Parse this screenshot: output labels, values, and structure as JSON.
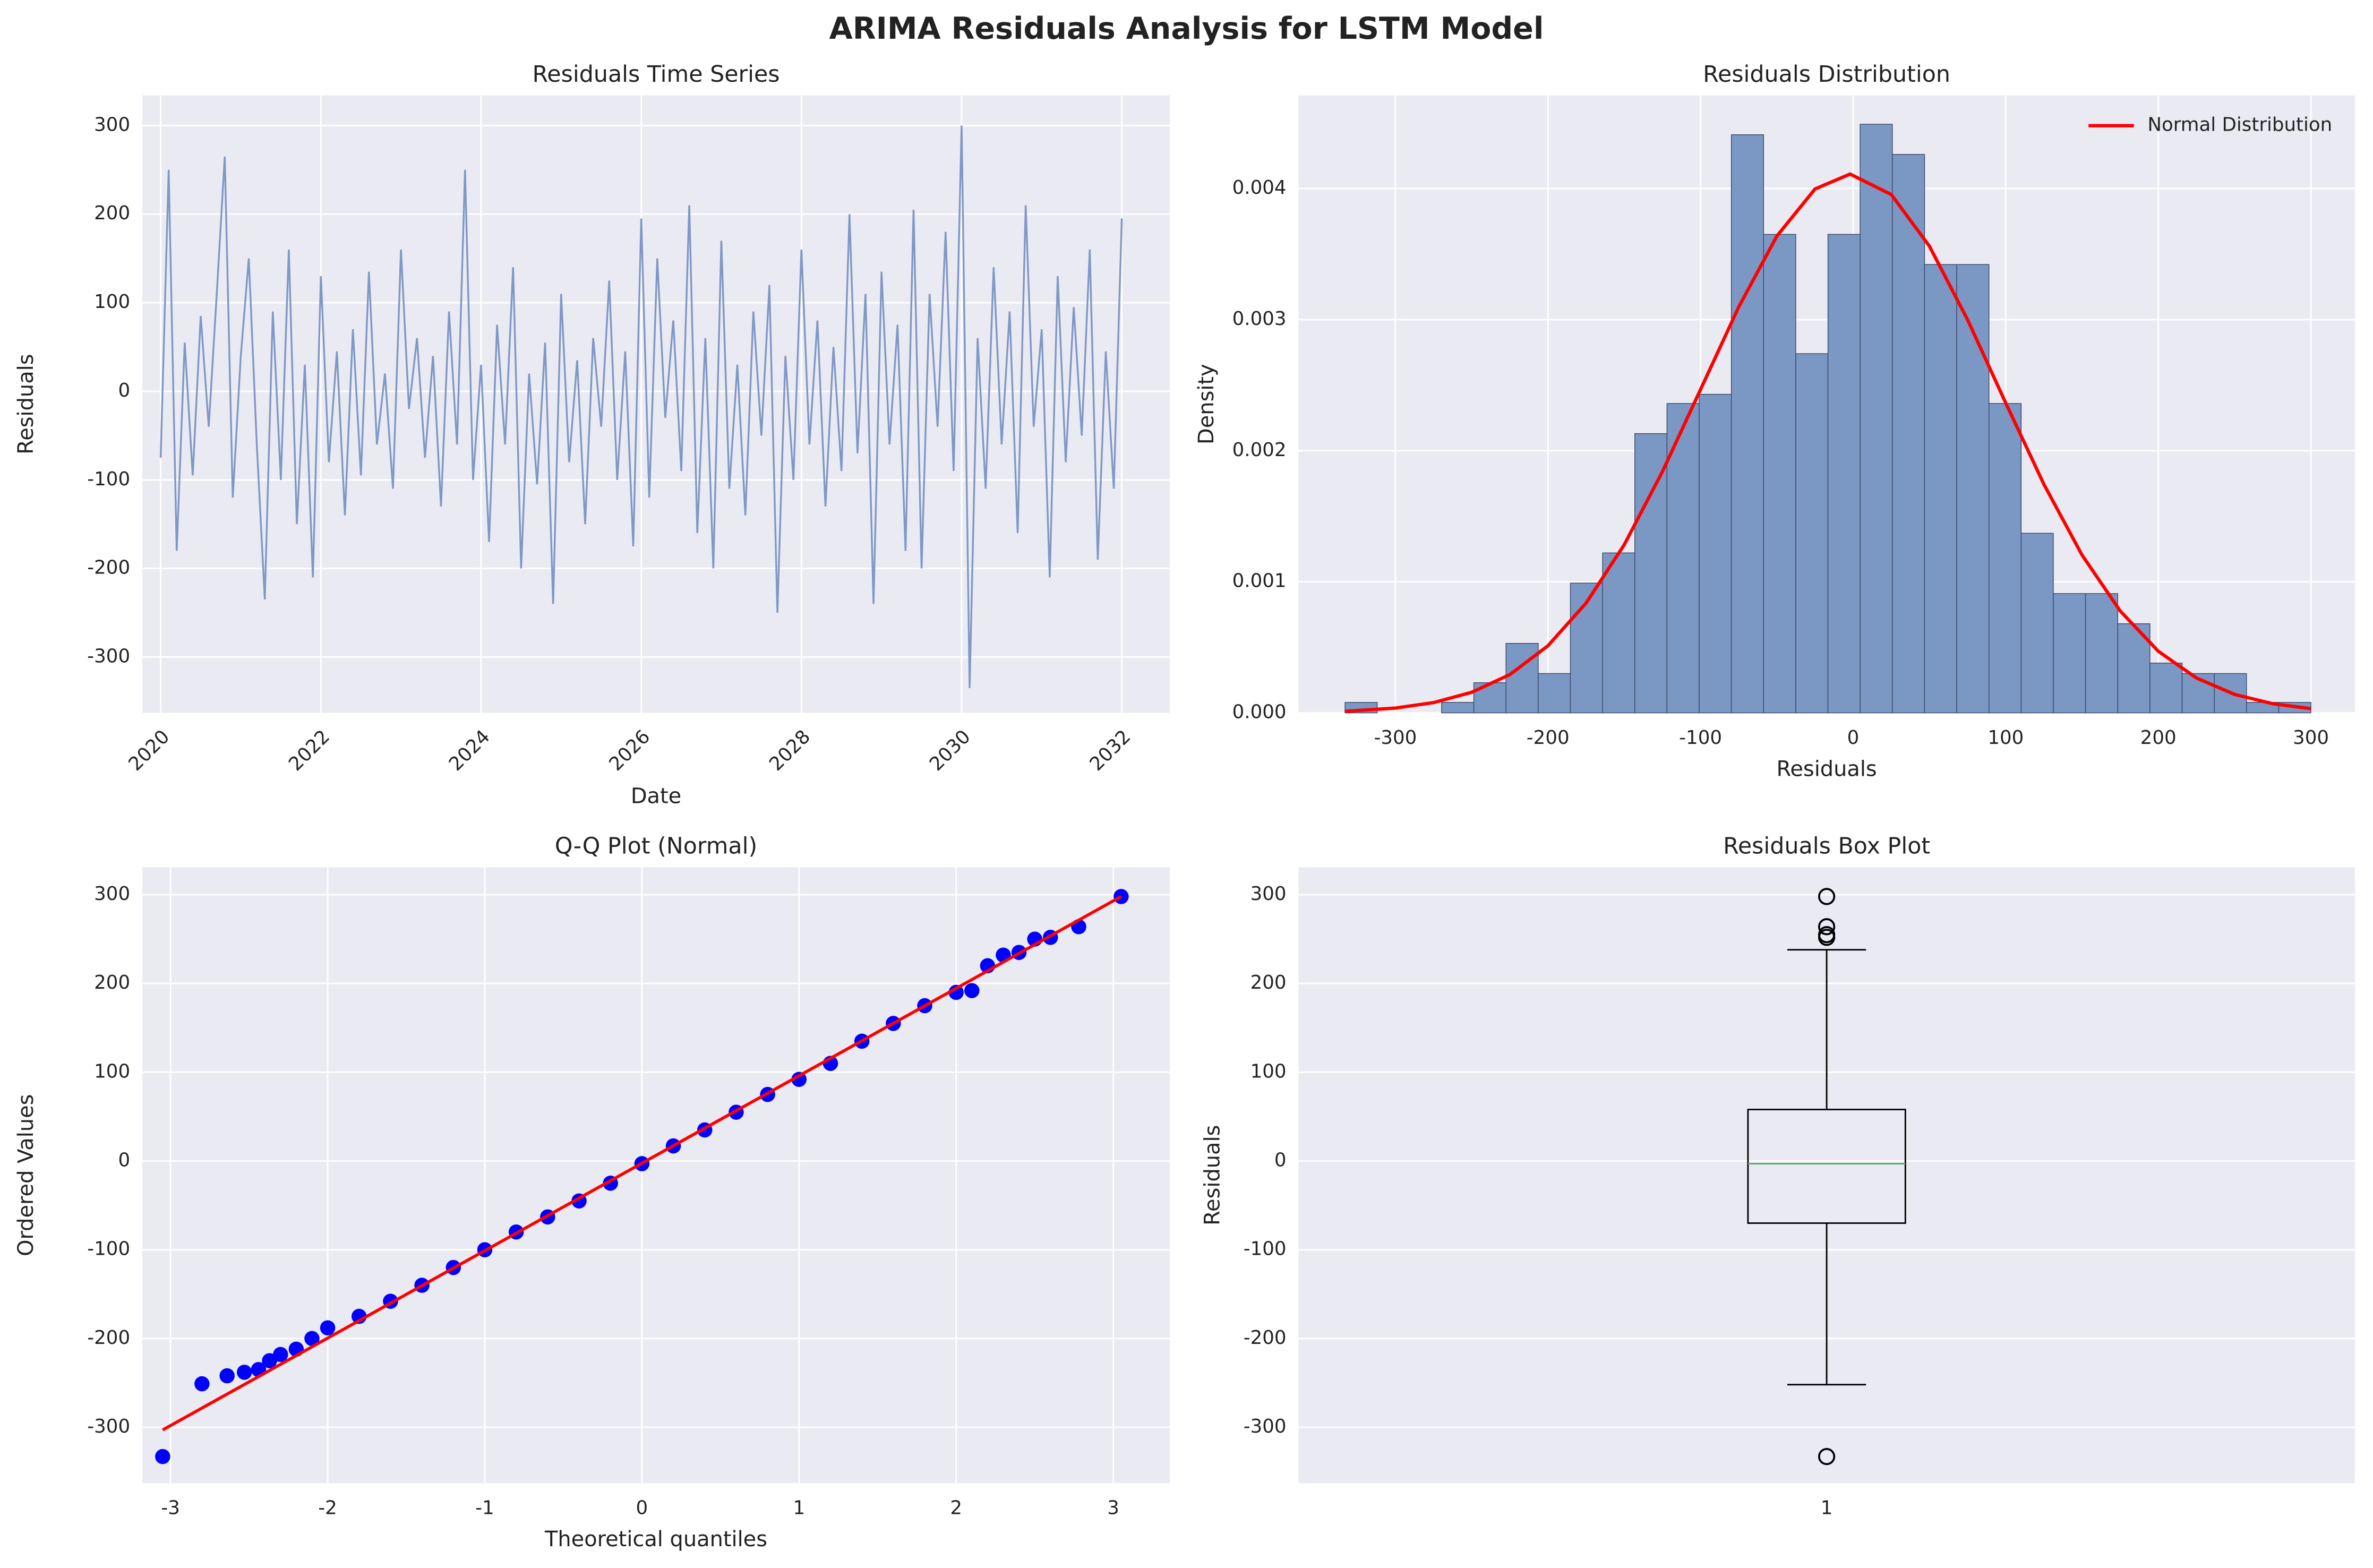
{
  "title": "ARIMA Residuals Analysis for LSTM Model",
  "chart_data": [
    {
      "type": "line",
      "title": "Residuals Time Series",
      "xlabel": "Date",
      "ylabel": "Residuals",
      "xlim": [
        2019.77,
        2032.6
      ],
      "ylim": [
        -363,
        334
      ],
      "xticks": [
        2020,
        2022,
        2024,
        2026,
        2028,
        2030,
        2032
      ],
      "yticks": [
        -300,
        -200,
        -100,
        0,
        100,
        200,
        300
      ],
      "grid": true,
      "xtick_rotation": 45,
      "series": [
        {
          "color": "#7f98c6",
          "x": [
            2020,
            2020.1,
            2020.2,
            2020.3,
            2020.4,
            2020.5,
            2020.6,
            2020.7,
            2020.8,
            2020.9,
            2021,
            2021.1,
            2021.2,
            2021.3,
            2021.4,
            2021.5,
            2021.6,
            2021.7,
            2021.8,
            2021.9,
            2022,
            2022.1,
            2022.2,
            2022.3,
            2022.4,
            2022.5,
            2022.6,
            2022.7,
            2022.8,
            2022.9,
            2023,
            2023.1,
            2023.2,
            2023.3,
            2023.4,
            2023.5,
            2023.6,
            2023.7,
            2023.8,
            2023.9,
            2024,
            2024.1,
            2024.2,
            2024.3,
            2024.4,
            2024.5,
            2024.6,
            2024.7,
            2024.8,
            2024.9,
            2025,
            2025.1,
            2025.2,
            2025.3,
            2025.4,
            2025.5,
            2025.6,
            2025.7,
            2025.8,
            2025.9,
            2026,
            2026.1,
            2026.2,
            2026.3,
            2026.4,
            2026.5,
            2026.6,
            2026.7,
            2026.8,
            2026.9,
            2027,
            2027.1,
            2027.2,
            2027.3,
            2027.4,
            2027.5,
            2027.6,
            2027.7,
            2027.8,
            2027.9,
            2028,
            2028.1,
            2028.2,
            2028.3,
            2028.4,
            2028.5,
            2028.6,
            2028.7,
            2028.8,
            2028.9,
            2029,
            2029.1,
            2029.2,
            2029.3,
            2029.4,
            2029.5,
            2029.6,
            2029.7,
            2029.8,
            2029.9,
            2030,
            2030.1,
            2030.2,
            2030.3,
            2030.4,
            2030.5,
            2030.6,
            2030.7,
            2030.8,
            2030.9,
            2031,
            2031.1,
            2031.2,
            2031.3,
            2031.4,
            2031.5,
            2031.6,
            2031.7,
            2031.8,
            2031.9,
            2032
          ],
          "values": [
            -75,
            250,
            -180,
            55,
            -95,
            85,
            -40,
            110,
            265,
            -120,
            40,
            150,
            -60,
            -235,
            90,
            -100,
            160,
            -150,
            30,
            -210,
            130,
            -80,
            45,
            -140,
            70,
            -95,
            135,
            -60,
            20,
            -110,
            160,
            -20,
            60,
            -75,
            40,
            -130,
            90,
            -60,
            250,
            -100,
            30,
            -170,
            75,
            -60,
            140,
            -200,
            20,
            -105,
            55,
            -240,
            110,
            -80,
            35,
            -150,
            60,
            -40,
            125,
            -100,
            45,
            -175,
            195,
            -120,
            150,
            -30,
            80,
            -90,
            210,
            -160,
            60,
            -200,
            170,
            -110,
            30,
            -140,
            90,
            -50,
            120,
            -250,
            40,
            -100,
            160,
            -60,
            80,
            -130,
            50,
            -90,
            200,
            -70,
            110,
            -240,
            135,
            -60,
            75,
            -180,
            205,
            -200,
            110,
            -40,
            180,
            -90,
            300,
            -335,
            60,
            -110,
            140,
            -60,
            90,
            -160,
            210,
            -40,
            70,
            -210,
            130,
            -80,
            95,
            -50,
            160,
            -190,
            45,
            -110,
            195
          ]
        }
      ]
    },
    {
      "type": "histogram",
      "title": "Residuals Distribution",
      "xlabel": "Residuals",
      "ylabel": "Density",
      "xlim": [
        -363.5,
        328.8
      ],
      "ylim": [
        0,
        0.00471
      ],
      "xticks": [
        -300,
        -200,
        -100,
        0,
        100,
        200,
        300
      ],
      "yticks": [
        {
          "value": 0,
          "label": "0.000"
        },
        {
          "value": 0.001,
          "label": "0.001"
        },
        {
          "value": 0.002,
          "label": "0.002"
        },
        {
          "value": 0.003,
          "label": "0.003"
        },
        {
          "value": 0.004,
          "label": "0.004"
        }
      ],
      "grid": true,
      "color": "#7b97c4",
      "legend": "upper right",
      "bins": [
        -333,
        -311.9,
        -290.8,
        -269.7,
        -248.6,
        -227.5,
        -206.4,
        -185.3,
        -164.2,
        -143.1,
        -122,
        -100.9,
        -79.8,
        -58.7,
        -37.6,
        -16.5,
        4.6,
        25.7,
        46.8,
        67.9,
        89,
        110.1,
        131.2,
        152.3,
        173.4,
        194.5,
        215.6,
        236.7,
        257.8,
        278.9,
        300
      ],
      "values": [
        8e-05,
        0,
        0,
        8e-05,
        0.00023,
        0.00053,
        0.0003,
        0.00099,
        0.00122,
        0.00213,
        0.00236,
        0.00243,
        0.00441,
        0.00365,
        0.00274,
        0.00365,
        0.00449,
        0.00426,
        0.00342,
        0.00342,
        0.00236,
        0.00137,
        0.00091,
        0.00091,
        0.00068,
        0.00038,
        0.0003,
        0.0003,
        8e-05,
        8e-05
      ],
      "series": [
        {
          "name": "Normal Distribution",
          "color": "#ff0000",
          "x": [
            -333,
            -300,
            -275,
            -250,
            -225,
            -200,
            -175,
            -150,
            -125,
            -100,
            -75,
            -50,
            -25,
            -2,
            25,
            50,
            75,
            100,
            125,
            150,
            175,
            200,
            225,
            250,
            275,
            300
          ],
          "values": [
            1.22e-05,
            3.67e-05,
            7.83e-05,
            0.000157,
            0.000292,
            0.000512,
            0.000838,
            0.001283,
            0.00184,
            0.002467,
            0.003096,
            0.003637,
            0.003996,
            0.00411,
            0.003954,
            0.00356,
            0.002999,
            0.002364,
            0.001744,
            0.001204,
            0.000778,
            0.00047,
            0.000266,
            0.000141,
            6.97e-05,
            3.23e-05
          ]
        }
      ]
    },
    {
      "type": "scatter",
      "title": "Q-Q Plot (Normal)",
      "xlabel": "Theoretical quantiles",
      "ylabel": "Ordered Values",
      "xlim": [
        -3.18,
        3.36
      ],
      "ylim": [
        -363,
        331
      ],
      "xticks": [
        -3,
        -2,
        -1,
        0,
        1,
        2,
        3
      ],
      "yticks": [
        -300,
        -200,
        -100,
        0,
        100,
        200,
        300
      ],
      "grid": true,
      "series": [
        {
          "color": "#0000ff",
          "style": "markers",
          "x": [
            -3.05,
            -2.8,
            -2.64,
            -2.53,
            -2.44,
            -2.37,
            -2.3,
            -2.2,
            -2.1,
            -2,
            -1.8,
            -1.6,
            -1.4,
            -1.2,
            -1,
            -0.8,
            -0.6,
            -0.4,
            -0.2,
            0,
            0.2,
            0.4,
            0.6,
            0.8,
            1,
            1.2,
            1.4,
            1.6,
            1.8,
            2,
            2.1,
            2.2,
            2.3,
            2.4,
            2.5,
            2.6,
            2.78,
            3.05
          ],
          "values": [
            -333,
            -251,
            -242,
            -238,
            -235,
            -225,
            -218,
            -212,
            -200,
            -188,
            -175,
            -158,
            -140,
            -120,
            -100,
            -80,
            -63,
            -45,
            -25,
            -3,
            17,
            35,
            55,
            75,
            92,
            110,
            135,
            155,
            175,
            190,
            192,
            220,
            232,
            235,
            250,
            252,
            264,
            298
          ]
        },
        {
          "color": "#ff0000",
          "style": "line",
          "x": [
            -3.05,
            3.05
          ],
          "values": [
            -303,
            298
          ]
        }
      ]
    },
    {
      "type": "box",
      "title": "Residuals Box Plot",
      "ylabel": "Residuals",
      "ylim": [
        -363,
        331
      ],
      "yticks": [
        -300,
        -200,
        -100,
        0,
        100,
        200,
        300
      ],
      "grid": true,
      "categories": [
        "1"
      ],
      "color": "#000000",
      "median_color": "#55a868",
      "boxes": [
        {
          "whislo": -252,
          "q1": -70,
          "med": -3,
          "q3": 58,
          "whishi": 238,
          "fliers": [
            -333,
            252,
            255,
            264,
            298
          ]
        }
      ]
    }
  ]
}
